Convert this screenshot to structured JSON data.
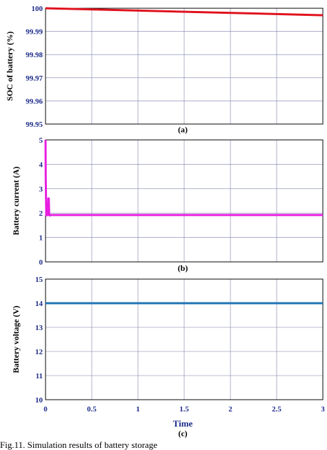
{
  "caption": "Fig.11. Simulation results of battery storage",
  "chart_data": [
    {
      "type": "line",
      "panel_label": "(a)",
      "ylabel": "SOC of battery (%)",
      "xlabel": "",
      "xlim": [
        0,
        3
      ],
      "ylim": [
        99.95,
        100
      ],
      "xticks": [
        0,
        0.5,
        1,
        1.5,
        2,
        2.5,
        3
      ],
      "yticks": [
        99.95,
        99.96,
        99.97,
        99.98,
        99.99,
        100
      ],
      "ytick_labels": [
        "99.95",
        "99.96",
        "99.97",
        "99.98",
        "99.99",
        "100"
      ],
      "show_xtick_labels": false,
      "grid": true,
      "series": [
        {
          "color": "#e0101c",
          "x": [
            0,
            3
          ],
          "y": [
            100,
            99.997
          ]
        }
      ]
    },
    {
      "type": "line",
      "panel_label": "(b)",
      "ylabel": "Battery current (A)",
      "xlabel": "",
      "xlim": [
        0,
        3
      ],
      "ylim": [
        0,
        5
      ],
      "xticks": [
        0,
        0.5,
        1,
        1.5,
        2,
        2.5,
        3
      ],
      "yticks": [
        0,
        1,
        2,
        3,
        4,
        5
      ],
      "ytick_labels": [
        "0",
        "1",
        "2",
        "3",
        "4",
        "5"
      ],
      "show_xtick_labels": false,
      "grid": true,
      "series": [
        {
          "color": "#e81ee0",
          "x": [
            0,
            0.002,
            0.008,
            0.015,
            0.025,
            0.03,
            0.035,
            0.04,
            0.045,
            0.05,
            0.06,
            3
          ],
          "y": [
            5,
            3.5,
            1.9,
            1.92,
            1.92,
            2.6,
            2.6,
            1.92,
            1.9,
            1.92,
            1.92,
            1.92
          ]
        }
      ]
    },
    {
      "type": "line",
      "panel_label": "(c)",
      "ylabel": "Battery voltage (V)",
      "xlabel": "Time",
      "xlim": [
        0,
        3
      ],
      "ylim": [
        10,
        15
      ],
      "xticks": [
        0,
        0.5,
        1,
        1.5,
        2,
        2.5,
        3
      ],
      "xtick_labels": [
        "0",
        "0.5",
        "1",
        "1.5",
        "2",
        "2.5",
        "3"
      ],
      "yticks": [
        10,
        11,
        12,
        13,
        14,
        15
      ],
      "ytick_labels": [
        "10",
        "11",
        "12",
        "13",
        "14",
        "15"
      ],
      "show_xtick_labels": true,
      "grid": true,
      "series": [
        {
          "color": "#1f73b4",
          "x": [
            0,
            3
          ],
          "y": [
            14,
            14
          ]
        }
      ]
    }
  ]
}
